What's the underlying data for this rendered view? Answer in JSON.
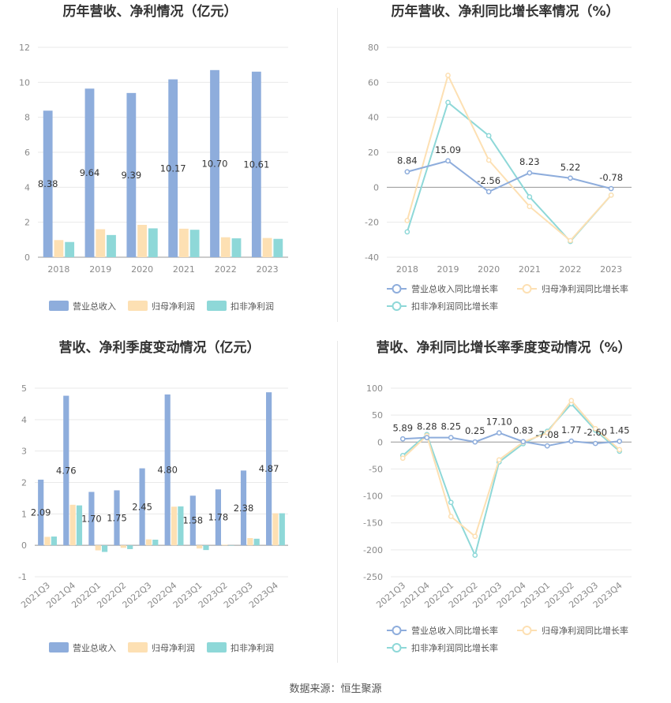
{
  "colors": {
    "revenue": "#8EADDC",
    "net_profit": "#FDE0B3",
    "deducted_profit": "#8ED8D8",
    "growth_revenue": "#8EADDC",
    "growth_net": "#FDE0B3",
    "growth_deducted": "#8ED8D8",
    "grid": "#e9e9e9",
    "axis": "#999999"
  },
  "footer": "数据来源：恒生聚源",
  "chart_data": [
    {
      "id": "annual_bar",
      "type": "bar",
      "title": "历年营收、净利情况（亿元）",
      "categories": [
        "2018",
        "2019",
        "2020",
        "2021",
        "2022",
        "2023"
      ],
      "ylim": [
        0,
        12
      ],
      "yticks": [
        0,
        2,
        4,
        6,
        8,
        10,
        12
      ],
      "series": [
        {
          "name": "营业总收入",
          "values": [
            8.38,
            9.64,
            9.39,
            10.17,
            10.7,
            10.61
          ],
          "labels": [
            "8.38",
            "9.64",
            "9.39",
            "10.17",
            "10.70",
            "10.61"
          ]
        },
        {
          "name": "归母净利润",
          "values": [
            0.98,
            1.6,
            1.85,
            1.63,
            1.14,
            1.1
          ]
        },
        {
          "name": "扣非净利润",
          "values": [
            0.87,
            1.27,
            1.65,
            1.57,
            1.08,
            1.05
          ]
        }
      ],
      "legend": "bottom",
      "grid": true
    },
    {
      "id": "annual_growth",
      "type": "line",
      "title": "历年营收、净利同比增长率情况（%）",
      "categories": [
        "2018",
        "2019",
        "2020",
        "2021",
        "2022",
        "2023"
      ],
      "ylim": [
        -40,
        80
      ],
      "yticks": [
        -40,
        -20,
        0,
        20,
        40,
        60,
        80
      ],
      "series": [
        {
          "name": "营业总收入同比增长率",
          "values": [
            8.84,
            15.09,
            -2.56,
            8.23,
            5.22,
            -0.78
          ],
          "labels": [
            "8.84",
            "15.09",
            "-2.56",
            "8.23",
            "5.22",
            "-0.78"
          ]
        },
        {
          "name": "归母净利润同比增长率",
          "values": [
            -19,
            64,
            15.5,
            -11,
            -30.5,
            -4.5
          ]
        },
        {
          "name": "扣非净利润同比增长率",
          "values": [
            -25.5,
            48.5,
            29.5,
            -5.5,
            -31,
            -4.5
          ]
        }
      ],
      "legend": "bottom",
      "grid": true
    },
    {
      "id": "quarter_bar",
      "type": "bar",
      "title": "营收、净利季度变动情况（亿元）",
      "categories": [
        "2021Q3",
        "2021Q4",
        "2022Q1",
        "2022Q2",
        "2022Q3",
        "2022Q4",
        "2023Q1",
        "2023Q2",
        "2023Q3",
        "2023Q4"
      ],
      "ylim": [
        -1,
        5
      ],
      "yticks": [
        -1,
        0,
        1,
        2,
        3,
        4,
        5
      ],
      "series": [
        {
          "name": "营业总收入",
          "values": [
            2.09,
            4.76,
            1.7,
            1.75,
            2.45,
            4.8,
            1.58,
            1.78,
            2.38,
            4.87
          ],
          "labels": [
            "2.09",
            "4.76",
            "1.70",
            "1.75",
            "2.45",
            "4.80",
            "1.58",
            "1.78",
            "2.38",
            "4.87"
          ]
        },
        {
          "name": "归母净利润",
          "values": [
            0.27,
            1.29,
            -0.16,
            -0.08,
            0.19,
            1.23,
            -0.1,
            0.02,
            0.23,
            1.02
          ]
        },
        {
          "name": "扣非净利润",
          "values": [
            0.28,
            1.27,
            -0.21,
            -0.12,
            0.18,
            1.24,
            -0.15,
            0.0,
            0.21,
            1.02
          ]
        }
      ],
      "legend": "bottom",
      "grid": true
    },
    {
      "id": "quarter_growth",
      "type": "line",
      "title": "营收、净利同比增长率季度变动情况（%）",
      "categories": [
        "2021Q3",
        "2021Q4",
        "2022Q1",
        "2022Q2",
        "2022Q3",
        "2022Q4",
        "2023Q1",
        "2023Q2",
        "2023Q3",
        "2023Q4"
      ],
      "ylim": [
        -250,
        100
      ],
      "yticks": [
        -250,
        -200,
        -150,
        -100,
        -50,
        0,
        50,
        100
      ],
      "series": [
        {
          "name": "营业总收入同比增长率",
          "values": [
            5.89,
            8.28,
            8.25,
            0.25,
            17.1,
            0.83,
            -7.08,
            1.77,
            -2.6,
            1.45
          ],
          "labels": [
            "5.89",
            "8.28",
            "8.25",
            "0.25",
            "17.10",
            "0.83",
            "-7.08",
            "1.77",
            "-2.60",
            "1.45"
          ]
        },
        {
          "name": "归母净利润同比增长率",
          "values": [
            -30,
            12,
            -138,
            -175,
            -33,
            0,
            17,
            77,
            25,
            -14
          ]
        },
        {
          "name": "扣非净利润同比增长率",
          "values": [
            -25,
            14,
            -112,
            -210,
            -37,
            -3,
            20,
            71,
            22,
            -17
          ]
        }
      ],
      "legend": "bottom",
      "grid": true
    }
  ]
}
